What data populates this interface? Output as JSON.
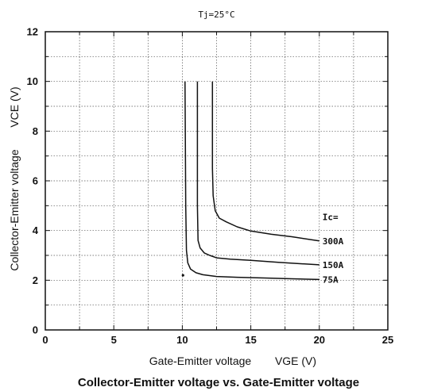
{
  "chart_data": {
    "type": "line",
    "title": "Collector-Emitter voltage vs. Gate-Emitter voltage",
    "condition": "Tj=25°C",
    "xlabel": "Gate-Emitter voltage",
    "xlabel_symbol": "VGE (V)",
    "ylabel": "Collector-Emitter voltage",
    "ylabel_symbol": "VCE (V)",
    "xlim": [
      0,
      25
    ],
    "ylim": [
      0,
      12
    ],
    "xticks": [
      "0",
      "5",
      "10",
      "15",
      "20",
      "25"
    ],
    "yticks": [
      "0",
      "2",
      "4",
      "6",
      "8",
      "10",
      "12"
    ],
    "grid": true,
    "series_group_label": "Ic=",
    "series": [
      {
        "name": "75A",
        "x": [
          10.2,
          10.25,
          10.3,
          10.4,
          10.6,
          11.0,
          11.5,
          12.5,
          14.0,
          16.0,
          18.0,
          20.0
        ],
        "y": [
          10.0,
          5.0,
          3.2,
          2.7,
          2.45,
          2.3,
          2.22,
          2.15,
          2.12,
          2.09,
          2.06,
          2.03
        ]
      },
      {
        "name": "150A",
        "x": [
          11.1,
          11.1,
          11.15,
          11.3,
          11.6,
          12.0,
          12.5,
          13.5,
          15.0,
          17.0,
          20.0
        ],
        "y": [
          10.0,
          5.0,
          3.6,
          3.3,
          3.1,
          3.0,
          2.9,
          2.85,
          2.8,
          2.72,
          2.62
        ]
      },
      {
        "name": "300A",
        "x": [
          12.2,
          12.2,
          12.25,
          12.4,
          12.7,
          13.2,
          14.0,
          15.0,
          16.5,
          18.0,
          20.0
        ],
        "y": [
          10.0,
          6.5,
          5.4,
          4.8,
          4.5,
          4.35,
          4.15,
          3.98,
          3.85,
          3.75,
          3.58
        ]
      }
    ]
  }
}
